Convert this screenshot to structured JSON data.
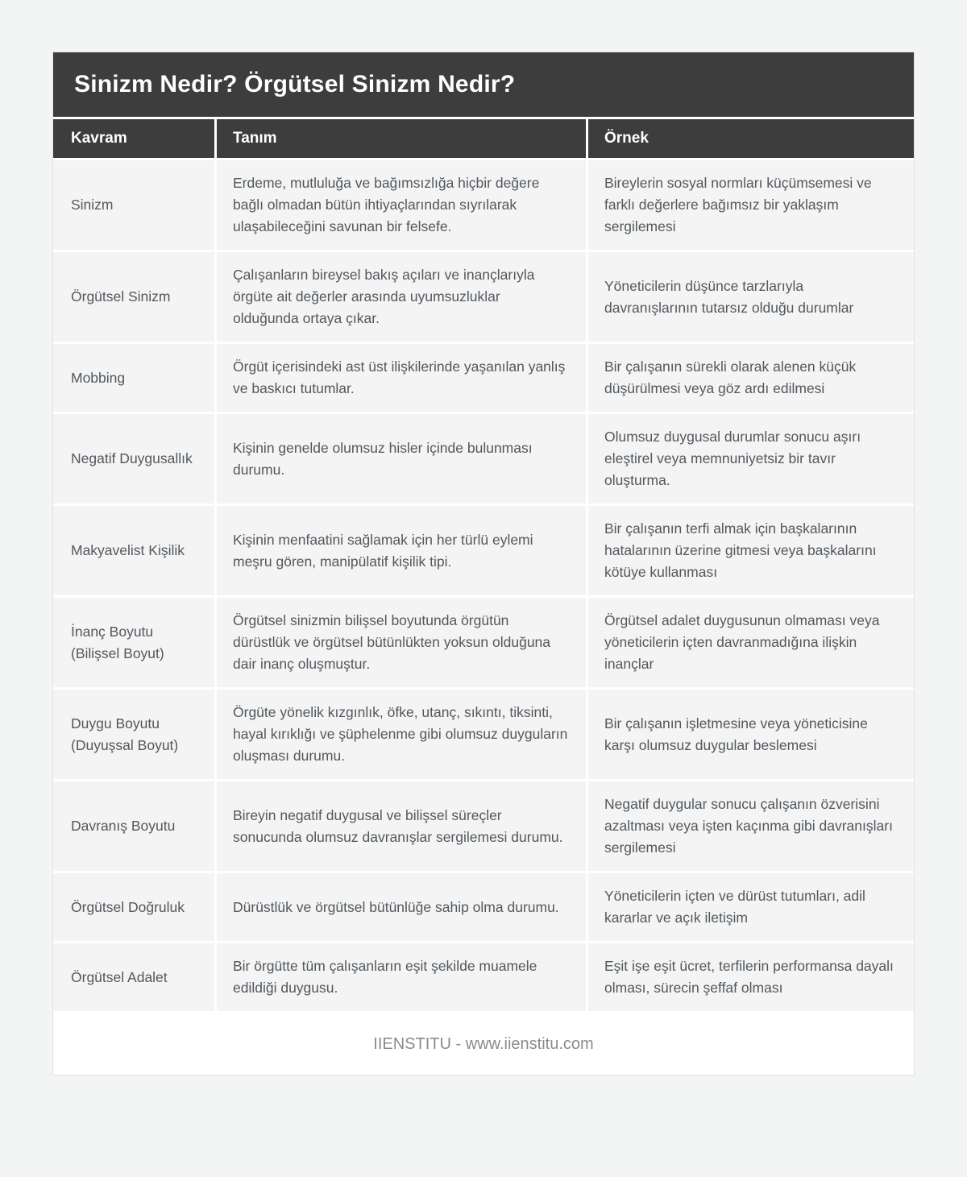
{
  "title": "Sinizm Nedir? Örgütsel Sinizm Nedir?",
  "footer": "IIENSTITU - www.iienstitu.com",
  "colors": {
    "header_bg": "#3d3d3d",
    "header_text": "#ffffff",
    "cell_bg": "#f4f4f4",
    "body_text": "#51585e",
    "page_bg": "#f3f4f4",
    "footer_text": "#8b8b8b"
  },
  "table": {
    "headers": [
      "Kavram",
      "Tanım",
      "Örnek"
    ],
    "rows": [
      {
        "kavram": "Sinizm",
        "tanim": "Erdeme, mutluluğa ve bağımsızlığa hiçbir değere bağlı olmadan bütün ihtiyaçlarından sıyrılarak ulaşabileceğini savunan bir felsefe.",
        "ornek": "Bireylerin sosyal normları küçümsemesi ve farklı değerlere bağımsız bir yaklaşım sergilemesi"
      },
      {
        "kavram": "Örgütsel Sinizm",
        "tanim": "Çalışanların bireysel bakış açıları ve inançlarıyla örgüte ait değerler arasında uyumsuzluklar olduğunda ortaya çıkar.",
        "ornek": "Yöneticilerin düşünce tarzlarıyla davranışlarının tutarsız olduğu durumlar"
      },
      {
        "kavram": "Mobbing",
        "tanim": "Örgüt içerisindeki ast üst ilişkilerinde yaşanılan yanlış ve baskıcı tutumlar.",
        "ornek": "Bir çalışanın sürekli olarak alenen küçük düşürülmesi veya göz ardı edilmesi"
      },
      {
        "kavram": "Negatif Duygusallık",
        "tanim": "Kişinin genelde olumsuz hisler içinde bulunması durumu.",
        "ornek": "Olumsuz duygusal durumlar sonucu aşırı eleştirel veya memnuniyetsiz bir tavır oluşturma."
      },
      {
        "kavram": "Makyavelist Kişilik",
        "tanim": "Kişinin menfaatini sağlamak için her türlü eylemi meşru gören, manipülatif kişilik tipi.",
        "ornek": "Bir çalışanın terfi almak için başkalarının hatalarının üzerine gitmesi veya başkalarını kötüye kullanması"
      },
      {
        "kavram": "İnanç Boyutu (Bilişsel Boyut)",
        "tanim": "Örgütsel sinizmin bilişsel boyutunda örgütün dürüstlük ve örgütsel bütünlükten yoksun olduğuna dair inanç oluşmuştur.",
        "ornek": "Örgütsel adalet duygusunun olmaması veya yöneticilerin içten davranmadığına ilişkin inançlar"
      },
      {
        "kavram": "Duygu Boyutu (Duyuşsal Boyut)",
        "tanim": "Örgüte yönelik kızgınlık, öfke, utanç, sıkıntı, tiksinti, hayal kırıklığı ve şüphelenme gibi olumsuz duyguların oluşması durumu.",
        "ornek": "Bir çalışanın işletmesine veya yöneticisine karşı olumsuz duygular beslemesi"
      },
      {
        "kavram": "Davranış Boyutu",
        "tanim": "Bireyin negatif duygusal ve bilişsel süreçler sonucunda olumsuz davranışlar sergilemesi durumu.",
        "ornek": "Negatif duygular sonucu çalışanın özverisini azaltması veya işten kaçınma gibi davranışları sergilemesi"
      },
      {
        "kavram": "Örgütsel Doğruluk",
        "tanim": "Dürüstlük ve örgütsel bütünlüğe sahip olma durumu.",
        "ornek": "Yöneticilerin içten ve dürüst tutumları, adil kararlar ve açık iletişim"
      },
      {
        "kavram": "Örgütsel Adalet",
        "tanim": "Bir örgütte tüm çalışanların eşit şekilde muamele edildiği duygusu.",
        "ornek": "Eşit işe eşit ücret, terfilerin performansa dayalı olması, sürecin şeffaf olması"
      }
    ]
  }
}
